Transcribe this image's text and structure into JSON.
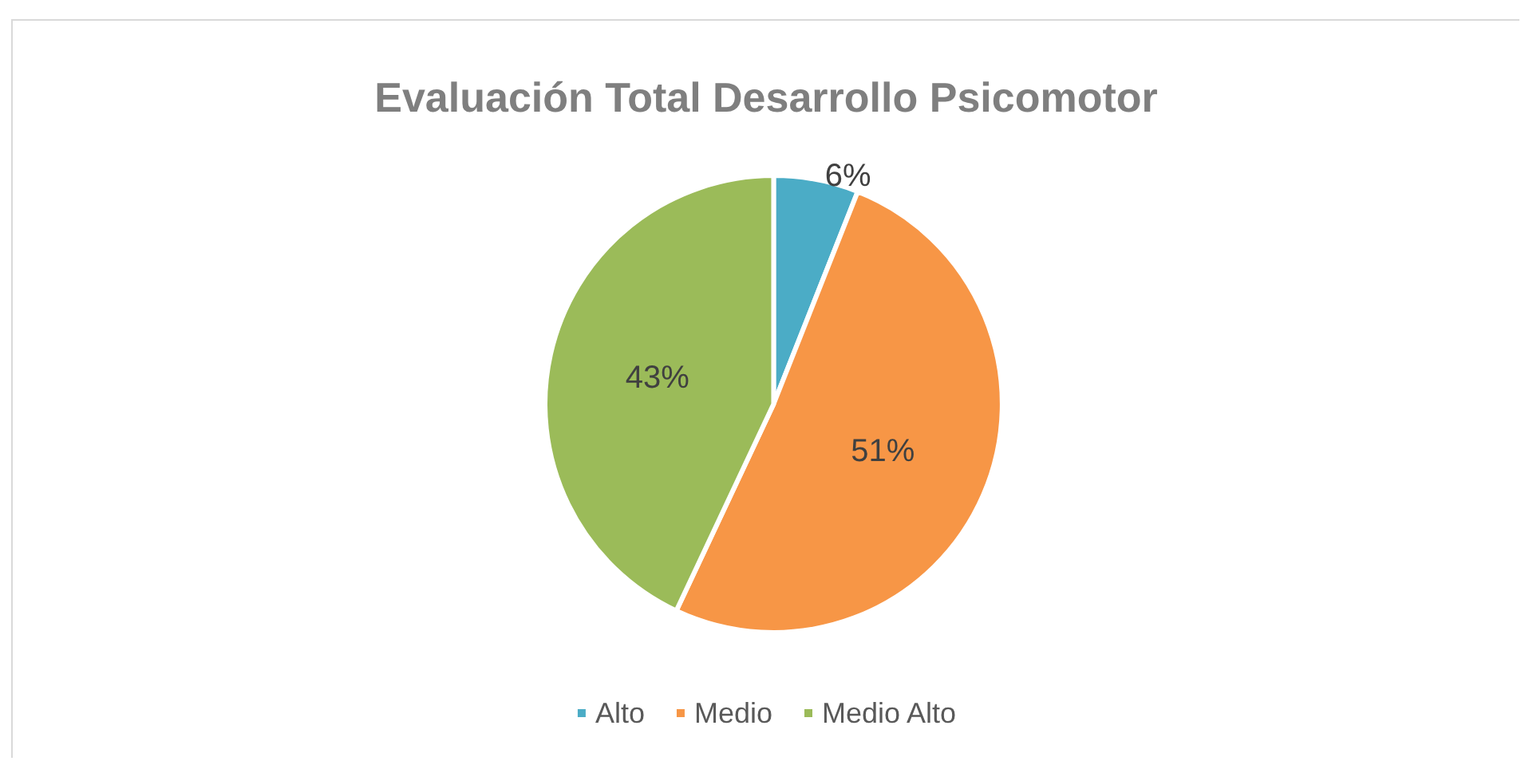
{
  "chart_data": {
    "type": "pie",
    "title": "Evaluación Total Desarrollo Psicomotor",
    "categories": [
      "Alto",
      "Medio",
      "Medio Alto"
    ],
    "values": [
      6,
      51,
      43
    ],
    "colors": [
      "#4bacc6",
      "#f79646",
      "#9bbb59"
    ],
    "value_labels": [
      "6%",
      "51%",
      "43%"
    ],
    "legend": "bottom"
  }
}
